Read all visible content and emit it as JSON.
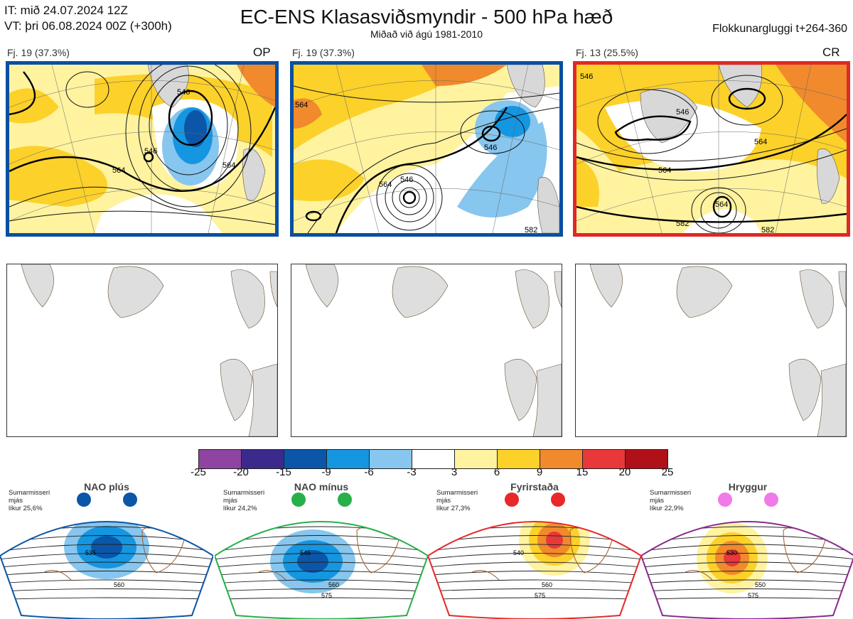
{
  "header": {
    "it_line": "IT: mið 24.07.2024 12Z",
    "vt_line": "VT: þri 06.08.2024 00Z  (+300h)",
    "title": "EC-ENS Klasasviðsmyndir - 500 hPa hæð",
    "subtitle": "Miðað við ágú 1981-2010",
    "window": "Flokkunargluggi t+264-360"
  },
  "panels": [
    {
      "label": "Fj. 19 (37.3%)",
      "tag": "OP",
      "border_color": "#0a4fa0",
      "contours": [
        "546",
        "546",
        "564",
        "564"
      ]
    },
    {
      "label": "Fj. 19 (37.3%)",
      "tag": "",
      "border_color": "#0a4fa0",
      "contours": [
        "564",
        "546",
        "546",
        "564",
        "582"
      ]
    },
    {
      "label": "Fj. 13 (25.5%)",
      "tag": "CR",
      "border_color": "#e02828",
      "contours": [
        "546",
        "546",
        "564",
        "564",
        "564",
        "582",
        "582"
      ]
    }
  ],
  "colorbar": {
    "ticks": [
      "-25",
      "-20",
      "-15",
      "-9",
      "-6",
      "-3",
      "3",
      "6",
      "9",
      "15",
      "20",
      "25"
    ],
    "colors": [
      "#8e44a0",
      "#3b2a8c",
      "#0b56a8",
      "#1596e0",
      "#87c6ee",
      "#ffffff",
      "#fff3a0",
      "#fcd12a",
      "#f08a2c",
      "#e8383a",
      "#b01018"
    ]
  },
  "regimes": [
    {
      "name": "NAO plús",
      "season": "Sumarmisseri",
      "mean": "mjás",
      "prob": "líkur 25,6%",
      "dot_color": "#0b56a8",
      "border_color": "#0b56a8",
      "contours": [
        "535",
        "560"
      ]
    },
    {
      "name": "NAO mínus",
      "season": "Sumarmisseri",
      "mean": "mjás",
      "prob": "líkur 24,2%",
      "dot_color": "#27b04a",
      "border_color": "#27b04a",
      "contours": [
        "545",
        "560",
        "575"
      ]
    },
    {
      "name": "Fyrirstaða",
      "season": "Sumarmisseri",
      "mean": "mjás",
      "prob": "líkur 27,3%",
      "dot_color": "#e8282a",
      "border_color": "#e8282a",
      "contours": [
        "540",
        "560",
        "575"
      ]
    },
    {
      "name": "Hryggur",
      "season": "Sumarmisseri",
      "mean": "mjás",
      "prob": "líkur 22,9%",
      "dot_color": "#f07ae8",
      "border_color": "#8a2a8c",
      "contours": [
        "530",
        "550",
        "575"
      ]
    }
  ]
}
